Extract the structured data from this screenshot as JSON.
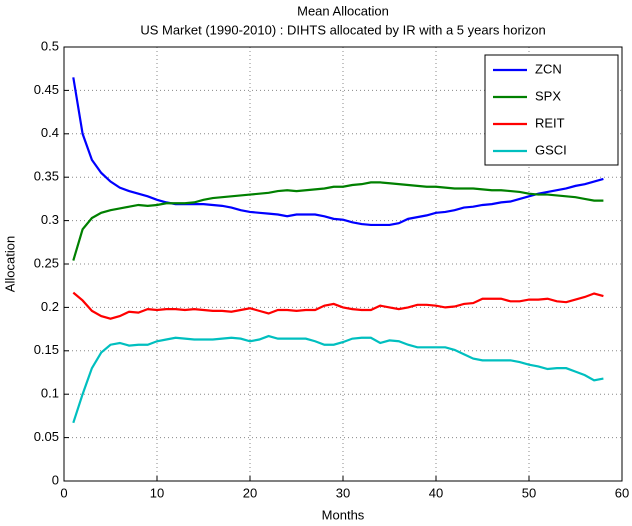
{
  "chart_data": {
    "type": "line",
    "title": "Mean Allocation",
    "subtitle": "US Market (1990-2010) : DIHTS  allocated by IR with a 5 years horizon",
    "x_label": "Months",
    "y_label": "Allocation",
    "x": [
      1,
      2,
      3,
      4,
      5,
      6,
      7,
      8,
      9,
      10,
      11,
      12,
      13,
      14,
      15,
      16,
      17,
      18,
      19,
      20,
      21,
      22,
      23,
      24,
      25,
      26,
      27,
      28,
      29,
      30,
      31,
      32,
      33,
      34,
      35,
      36,
      37,
      38,
      39,
      40,
      41,
      42,
      43,
      44,
      45,
      46,
      47,
      48,
      49,
      50,
      51,
      52,
      53,
      54,
      55,
      56,
      57,
      58
    ],
    "series": [
      {
        "name": "ZCN",
        "color": "#0000ff",
        "values": [
          0.465,
          0.4,
          0.37,
          0.355,
          0.345,
          0.338,
          0.334,
          0.331,
          0.328,
          0.324,
          0.321,
          0.319,
          0.319,
          0.319,
          0.319,
          0.318,
          0.317,
          0.315,
          0.312,
          0.31,
          0.309,
          0.308,
          0.307,
          0.305,
          0.307,
          0.307,
          0.307,
          0.305,
          0.302,
          0.301,
          0.298,
          0.296,
          0.295,
          0.295,
          0.295,
          0.297,
          0.302,
          0.304,
          0.306,
          0.309,
          0.31,
          0.312,
          0.315,
          0.316,
          0.318,
          0.319,
          0.321,
          0.322,
          0.325,
          0.328,
          0.331,
          0.333,
          0.335,
          0.337,
          0.34,
          0.342,
          0.345,
          0.348
        ]
      },
      {
        "name": "SPX",
        "color": "#008000",
        "values": [
          0.254,
          0.29,
          0.303,
          0.309,
          0.312,
          0.314,
          0.316,
          0.318,
          0.317,
          0.318,
          0.32,
          0.32,
          0.32,
          0.321,
          0.324,
          0.326,
          0.327,
          0.328,
          0.329,
          0.33,
          0.331,
          0.332,
          0.334,
          0.335,
          0.334,
          0.335,
          0.336,
          0.337,
          0.339,
          0.339,
          0.341,
          0.342,
          0.344,
          0.344,
          0.343,
          0.342,
          0.341,
          0.34,
          0.339,
          0.339,
          0.338,
          0.337,
          0.337,
          0.337,
          0.336,
          0.335,
          0.335,
          0.334,
          0.333,
          0.331,
          0.33,
          0.33,
          0.329,
          0.328,
          0.327,
          0.325,
          0.323,
          0.323
        ]
      },
      {
        "name": "REIT",
        "color": "#ff0000",
        "values": [
          0.217,
          0.208,
          0.196,
          0.19,
          0.187,
          0.19,
          0.195,
          0.194,
          0.198,
          0.197,
          0.198,
          0.198,
          0.197,
          0.198,
          0.197,
          0.196,
          0.196,
          0.195,
          0.197,
          0.199,
          0.196,
          0.193,
          0.197,
          0.197,
          0.196,
          0.197,
          0.197,
          0.202,
          0.204,
          0.2,
          0.198,
          0.197,
          0.197,
          0.202,
          0.2,
          0.198,
          0.2,
          0.203,
          0.203,
          0.202,
          0.2,
          0.201,
          0.204,
          0.205,
          0.21,
          0.21,
          0.21,
          0.207,
          0.207,
          0.209,
          0.209,
          0.21,
          0.207,
          0.206,
          0.209,
          0.212,
          0.216,
          0.213
        ]
      },
      {
        "name": "GSCI",
        "color": "#00bfbf",
        "values": [
          0.067,
          0.1,
          0.13,
          0.148,
          0.157,
          0.159,
          0.156,
          0.157,
          0.157,
          0.161,
          0.163,
          0.165,
          0.164,
          0.163,
          0.163,
          0.163,
          0.164,
          0.165,
          0.164,
          0.161,
          0.163,
          0.167,
          0.164,
          0.164,
          0.164,
          0.164,
          0.161,
          0.157,
          0.157,
          0.16,
          0.164,
          0.165,
          0.165,
          0.159,
          0.162,
          0.161,
          0.157,
          0.154,
          0.154,
          0.154,
          0.154,
          0.151,
          0.146,
          0.141,
          0.139,
          0.139,
          0.139,
          0.139,
          0.137,
          0.134,
          0.132,
          0.129,
          0.13,
          0.13,
          0.126,
          0.122,
          0.116,
          0.118
        ]
      }
    ],
    "xlim": [
      0,
      60
    ],
    "xticks": [
      0,
      10,
      20,
      30,
      40,
      50,
      60
    ],
    "ylim": [
      0,
      0.5
    ],
    "yticks": [
      0,
      0.05,
      0.1,
      0.15,
      0.2,
      0.25,
      0.3,
      0.35,
      0.4,
      0.45,
      0.5
    ],
    "grid": true,
    "legend": "top-right"
  }
}
